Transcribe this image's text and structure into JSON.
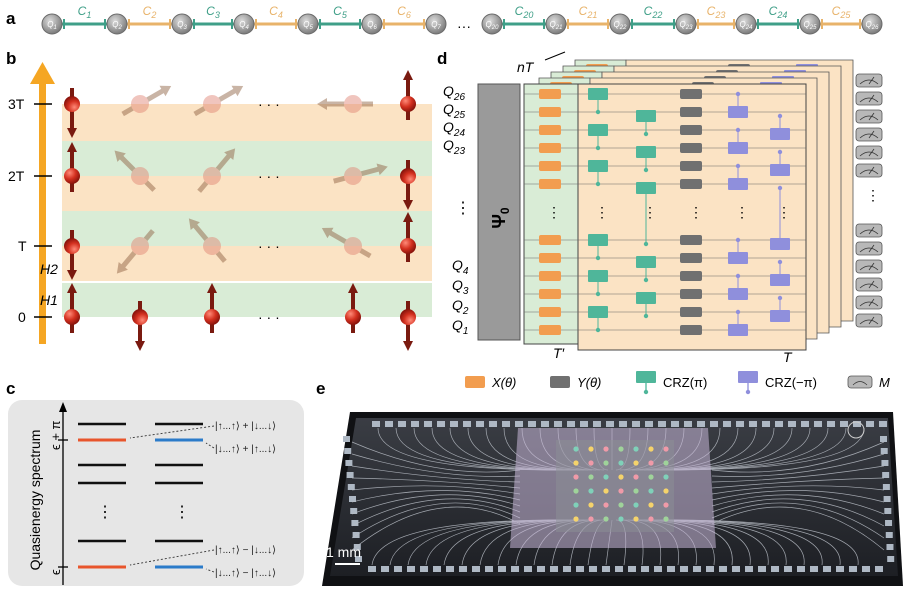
{
  "panels": {
    "a": "a",
    "b": "b",
    "c": "c",
    "d": "d",
    "e": "e"
  },
  "colors": {
    "qubit_gray": "#8c8c8c",
    "coupler_green": "#3f9f88",
    "coupler_orange": "#e8b36a",
    "arrow_orange": "#f5a623",
    "band_orange": "#fbe3c4",
    "band_green": "#d9ecd6",
    "spin_red": "#c0281e",
    "x_gate": "#f29d4f",
    "y_gate": "#707070",
    "crz_pi": "#4fb69a",
    "crz_mpi": "#8f8fdc",
    "meter": "#b8b8b8",
    "c_bg": "#e6e6e6",
    "level_orange": "#e8552c",
    "level_blue": "#2b7bc9"
  },
  "panel_a": {
    "qubits_left": [
      "Q1",
      "Q2",
      "Q3",
      "Q4",
      "Q5",
      "Q6",
      "Q7"
    ],
    "couplers_left": [
      "C1",
      "C2",
      "C3",
      "C4",
      "C5",
      "C6"
    ],
    "ellipsis": "···",
    "couplers_right": [
      "C20",
      "C21",
      "C22",
      "C23",
      "C24",
      "C25"
    ],
    "qubits_right": [
      "Q20",
      "Q21",
      "Q22",
      "Q23",
      "Q24",
      "Q25",
      "Q26"
    ]
  },
  "panel_b": {
    "ticks": [
      "3T",
      "2T",
      "T",
      "0"
    ],
    "hamiltonians": [
      "H2",
      "H1"
    ],
    "ellipsis": "· · ·"
  },
  "panel_c": {
    "ylabel": "Quasienergy spectrum",
    "level_top": "ϵ + π",
    "level_bottom": "ϵ",
    "states": [
      "|↑...↑⟩ + |↓...↓⟩",
      "|↓...↑⟩ + |↑...↓⟩",
      "|↑...↑⟩ − |↓...↓⟩",
      "|↓...↑⟩ − |↑...↓⟩"
    ],
    "vdots": "⋮"
  },
  "panel_d": {
    "qubit_labels_top": [
      "Q26",
      "Q25",
      "Q24",
      "Q23"
    ],
    "qubit_labels_bottom": [
      "Q4",
      "Q3",
      "Q2",
      "Q1"
    ],
    "psi": "Ψ0",
    "nT": "nT",
    "Tprime": "T′",
    "T": "T",
    "legend": [
      {
        "label": "X(θ)",
        "color": "#f29d4f"
      },
      {
        "label": "Y(θ)",
        "color": "#707070"
      },
      {
        "label": "CRZ(π)",
        "color": "#4fb69a"
      },
      {
        "label": "CRZ(−π)",
        "color": "#8f8fdc"
      },
      {
        "label": "M",
        "color": "#b8b8b8"
      }
    ]
  },
  "panel_e": {
    "scale_bar": "1 mm"
  }
}
